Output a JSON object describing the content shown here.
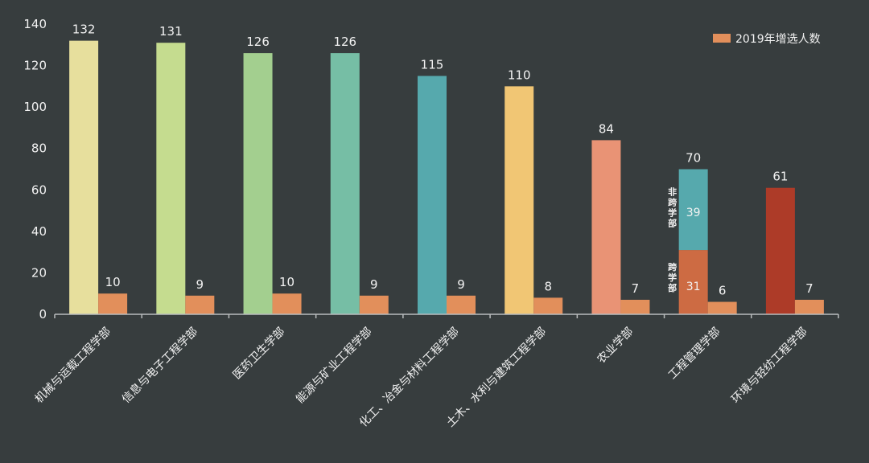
{
  "colors": {
    "background": "#373d3e",
    "axis": "#b9bcbd",
    "text": "#f2f2f2",
    "increase": "#e28f5b",
    "total_bars": [
      "#e7df9d",
      "#c5dc8f",
      "#a3cf8f",
      "#76bea5",
      "#56a9ad",
      "#f1c674",
      "#e99375",
      "#56a9ad",
      "#ad3b28"
    ],
    "split_lower": "#cd6b43"
  },
  "chart_data": {
    "type": "bar",
    "ylim": [
      0,
      140
    ],
    "yticks": [
      0,
      20,
      40,
      60,
      80,
      100,
      120,
      140
    ],
    "categories": [
      "机械与运载工程学部",
      "信息与电子工程学部",
      "医药卫生学部",
      "能源与矿业工程学部",
      "化工、冶金与材料工程学部",
      "土木、水利与建筑工程学部",
      "农业学部",
      "工程管理学部",
      "环境与轻纺工程学部"
    ],
    "series": [
      {
        "values": [
          132,
          131,
          126,
          126,
          115,
          110,
          84,
          70,
          61
        ]
      },
      {
        "name": "2019年增选人数",
        "values": [
          10,
          9,
          10,
          9,
          9,
          8,
          7,
          6,
          7
        ]
      }
    ],
    "stacked_breakdown": {
      "category_index": 7,
      "segments": [
        {
          "label": "跨学部",
          "value": 31
        },
        {
          "label": "非跨学部",
          "value": 39
        }
      ]
    },
    "legend_position": "top-right",
    "grid": false
  }
}
